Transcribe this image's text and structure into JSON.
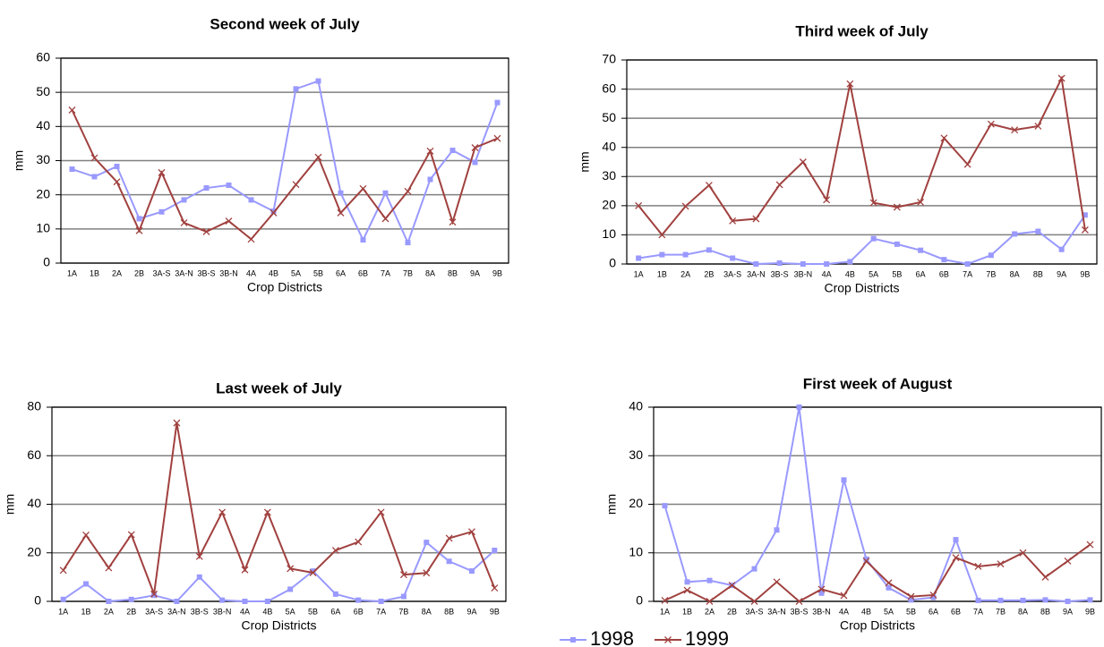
{
  "chart_data": [
    {
      "type": "line",
      "title": "Second week of July",
      "y_label": "mm",
      "x_label": "Crop Districts",
      "categories": [
        "1A",
        "1B",
        "2A",
        "2B",
        "3A-S",
        "3A-N",
        "3B-S",
        "3B-N",
        "4A",
        "4B",
        "5A",
        "5B",
        "6A",
        "6B",
        "7A",
        "7B",
        "8A",
        "8B",
        "9A",
        "9B"
      ],
      "ylim": [
        0,
        60
      ],
      "yticks": [
        0,
        10,
        20,
        30,
        40,
        50,
        60
      ],
      "grid": true,
      "series": [
        {
          "name": "1998",
          "color": "#9999ff",
          "marker": "square",
          "values": [
            27.5,
            25.3,
            28.3,
            13,
            15,
            18.5,
            22,
            22.8,
            18.5,
            15.2,
            51,
            53.3,
            20.5,
            6.8,
            20.5,
            6,
            24.5,
            33,
            29.5,
            47
          ]
        },
        {
          "name": "1999",
          "color": "#a0413f",
          "marker": "x",
          "values": [
            44.8,
            30.8,
            23.8,
            9.5,
            26.5,
            11.8,
            9.2,
            12.3,
            7,
            14.7,
            23,
            31,
            14.7,
            21.8,
            13,
            21,
            32.8,
            12,
            33.8,
            36.5
          ]
        }
      ]
    },
    {
      "type": "line",
      "title": "Third week of July",
      "y_label": "mm",
      "x_label": "Crop Districts",
      "categories": [
        "1A",
        "1B",
        "2A",
        "2B",
        "3A-S",
        "3A-N",
        "3B-S",
        "3B-N",
        "4A",
        "4B",
        "5A",
        "5B",
        "6A",
        "6B",
        "7A",
        "7B",
        "8A",
        "8B",
        "9A",
        "9B"
      ],
      "ylim": [
        0,
        70
      ],
      "yticks": [
        0,
        10,
        20,
        30,
        40,
        50,
        60,
        70
      ],
      "grid": true,
      "series": [
        {
          "name": "1998",
          "color": "#9999ff",
          "marker": "square",
          "values": [
            2,
            3.2,
            3.2,
            4.8,
            2,
            0,
            0.3,
            0,
            0,
            0.8,
            8.7,
            6.8,
            4.7,
            1.5,
            0,
            3,
            10.3,
            11.2,
            5,
            16.8
          ]
        },
        {
          "name": "1999",
          "color": "#a0413f",
          "marker": "x",
          "values": [
            20,
            10,
            19.8,
            27,
            14.8,
            15.5,
            27.2,
            35,
            22,
            61.8,
            21,
            19.5,
            21.2,
            43.2,
            34.2,
            48,
            46,
            47.3,
            63.7,
            11.7
          ]
        }
      ]
    },
    {
      "type": "line",
      "title": "Last week of July",
      "y_label": "mm",
      "x_label": "Crop Districts",
      "categories": [
        "1A",
        "1B",
        "2A",
        "2B",
        "3A-S",
        "3A-N",
        "3B-S",
        "3B-N",
        "4A",
        "4B",
        "5A",
        "5B",
        "6A",
        "6B",
        "7A",
        "7B",
        "8A",
        "8B",
        "9A",
        "9B"
      ],
      "ylim": [
        0,
        80
      ],
      "yticks": [
        0,
        20,
        40,
        60,
        80
      ],
      "grid": true,
      "series": [
        {
          "name": "1998",
          "color": "#9999ff",
          "marker": "square",
          "values": [
            0.8,
            7.2,
            0,
            0.8,
            2.5,
            0,
            10,
            0.5,
            0,
            0,
            5,
            12.5,
            3,
            0.5,
            0,
            2,
            24.3,
            16.5,
            12.5,
            21
          ]
        },
        {
          "name": "1999",
          "color": "#a0413f",
          "marker": "x",
          "values": [
            12.8,
            27.3,
            13.8,
            27.5,
            3,
            73.5,
            18.5,
            36.7,
            13,
            36.7,
            13.5,
            11.8,
            21,
            24.5,
            36.7,
            11,
            11.7,
            26,
            28.7,
            5.5
          ]
        }
      ]
    },
    {
      "type": "line",
      "title": "First week of August",
      "y_label": "mm",
      "x_label": "Crop Districts",
      "categories": [
        "1A",
        "1B",
        "2A",
        "2B",
        "3A-S",
        "3A-N",
        "3B-S",
        "3B-N",
        "4A",
        "4B",
        "5A",
        "5B",
        "6A",
        "6B",
        "7A",
        "7B",
        "8A",
        "8B",
        "9A",
        "9B"
      ],
      "ylim": [
        0,
        40
      ],
      "yticks": [
        0,
        10,
        20,
        30,
        40
      ],
      "grid": true,
      "series": [
        {
          "name": "1998",
          "color": "#9999ff",
          "marker": "square",
          "values": [
            19.7,
            4,
            4.3,
            3.3,
            6.7,
            14.7,
            40,
            1.7,
            25,
            8.7,
            2.8,
            0.3,
            0.8,
            12.7,
            0.2,
            0.2,
            0.2,
            0.3,
            0,
            0.3
          ]
        },
        {
          "name": "1999",
          "color": "#a0413f",
          "marker": "x",
          "values": [
            0.2,
            2.3,
            0,
            3.3,
            0,
            4,
            0,
            2.5,
            1.2,
            8.3,
            3.8,
            1,
            1.3,
            9,
            7.2,
            7.7,
            10,
            5,
            8.3,
            11.7
          ]
        }
      ]
    }
  ]
}
